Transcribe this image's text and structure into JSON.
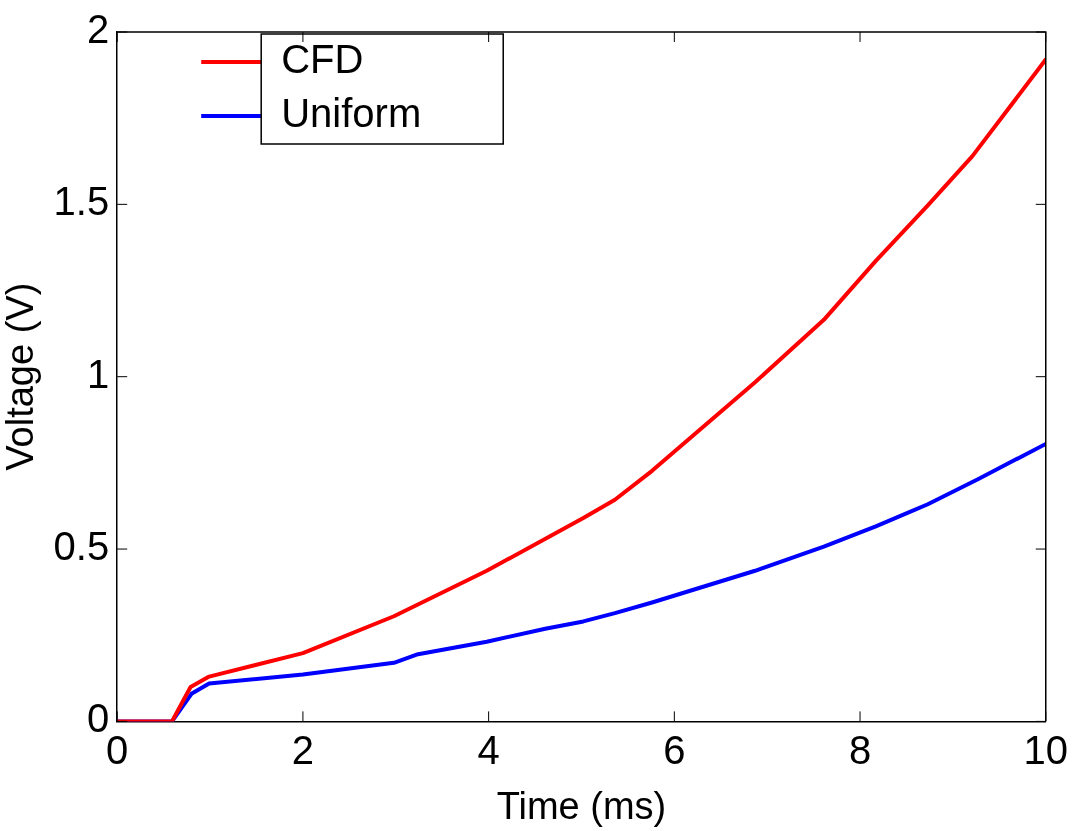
{
  "chart_data": {
    "type": "line",
    "xlabel": "Time (ms)",
    "ylabel": "Voltage (V)",
    "xlim": [
      0,
      10
    ],
    "xticks": [
      0,
      2,
      4,
      6,
      8,
      10
    ],
    "ylim": [
      0,
      2
    ],
    "yticks": [
      0,
      0.5,
      1,
      1.5,
      2
    ],
    "grid": false,
    "legend": "top left",
    "marker": "none",
    "line_style": "solid",
    "series": [
      {
        "name": "CFD",
        "color": "#ff0000",
        "x": [
          0,
          0.59,
          0.79,
          0.99,
          2,
          2.98,
          3.98,
          5.02,
          5.36,
          5.76,
          6.87,
          7.61,
          8.17,
          8.73,
          9.21,
          10
        ],
        "values": [
          0,
          0,
          0.1,
          0.13,
          0.198,
          0.305,
          0.437,
          0.59,
          0.643,
          0.727,
          0.984,
          1.165,
          1.336,
          1.497,
          1.64,
          1.92
        ]
      },
      {
        "name": "Uniform",
        "color": "#0000ff",
        "x": [
          0,
          0.59,
          0.8,
          0.99,
          2,
          2.98,
          3.24,
          3.98,
          4.61,
          5.02,
          5.36,
          5.76,
          6.87,
          7.61,
          8.17,
          8.73,
          9.28,
          10
        ],
        "values": [
          0,
          0,
          0.08,
          0.11,
          0.136,
          0.17,
          0.195,
          0.231,
          0.269,
          0.29,
          0.314,
          0.345,
          0.437,
          0.507,
          0.566,
          0.63,
          0.704,
          0.805
        ]
      }
    ]
  }
}
